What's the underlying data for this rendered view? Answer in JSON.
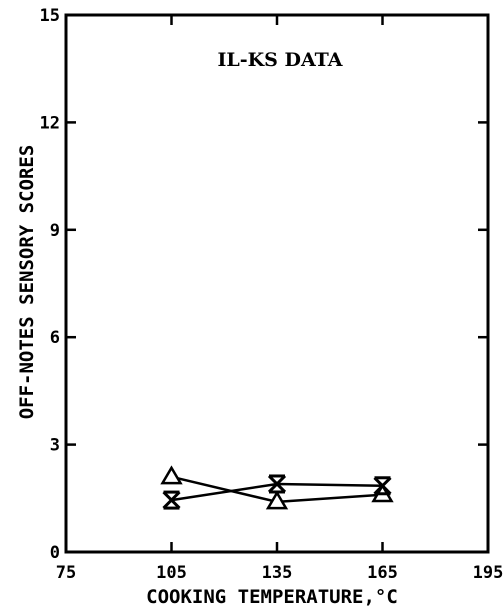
{
  "chart_data": {
    "type": "line",
    "title": "IL-KS DATA",
    "xlabel": "COOKING TEMPERATURE,°C",
    "ylabel": "OFF-NOTES SENSORY SCORES",
    "xlim": [
      75,
      195
    ],
    "ylim": [
      0,
      15
    ],
    "xticks": [
      75,
      105,
      135,
      165,
      195
    ],
    "yticks": [
      0,
      3,
      6,
      9,
      12,
      15
    ],
    "x": [
      105,
      135,
      165
    ],
    "series": [
      {
        "marker": "triangle",
        "values": [
          2.1,
          1.4,
          1.6
        ]
      },
      {
        "marker": "x",
        "values": [
          1.45,
          1.9,
          1.85
        ]
      }
    ],
    "grid": false,
    "legend": "none"
  }
}
